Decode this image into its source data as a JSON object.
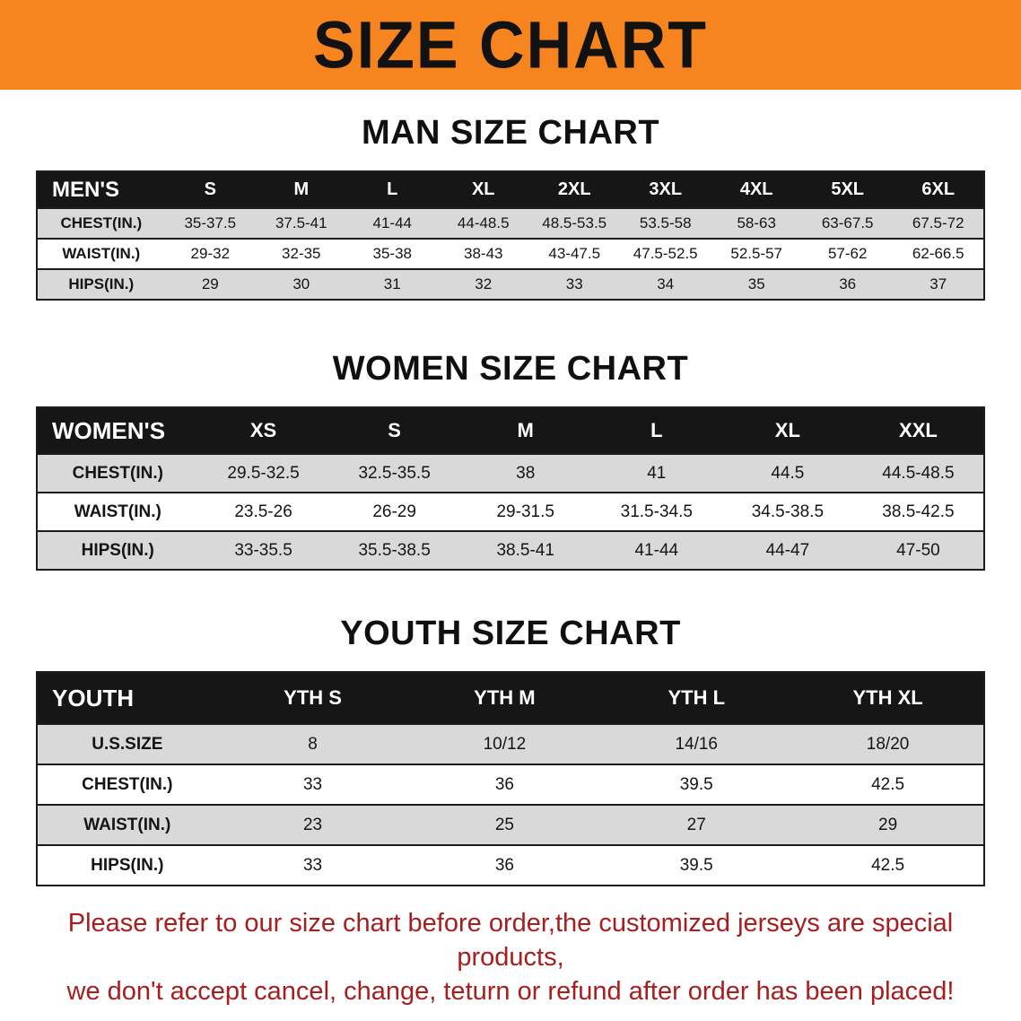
{
  "banner": {
    "title": "SIZE CHART"
  },
  "sections": [
    {
      "id": "men",
      "heading": "MAN SIZE CHART",
      "table": {
        "header": [
          "MEN'S",
          "S",
          "M",
          "L",
          "XL",
          "2XL",
          "3XL",
          "4XL",
          "5XL",
          "6XL"
        ],
        "rows": [
          {
            "label": "CHEST(IN.)",
            "values": [
              "35-37.5",
              "37.5-41",
              "41-44",
              "44-48.5",
              "48.5-53.5",
              "53.5-58",
              "58-63",
              "63-67.5",
              "67.5-72"
            ]
          },
          {
            "label": "WAIST(IN.)",
            "values": [
              "29-32",
              "32-35",
              "35-38",
              "38-43",
              "43-47.5",
              "47.5-52.5",
              "52.5-57",
              "57-62",
              "62-66.5"
            ]
          },
          {
            "label": "HIPS(IN.)",
            "values": [
              "29",
              "30",
              "31",
              "32",
              "33",
              "34",
              "35",
              "36",
              "37"
            ]
          }
        ]
      }
    },
    {
      "id": "women",
      "heading": "WOMEN SIZE CHART",
      "table": {
        "header": [
          "WOMEN'S",
          "XS",
          "S",
          "M",
          "L",
          "XL",
          "XXL"
        ],
        "rows": [
          {
            "label": "CHEST(IN.)",
            "values": [
              "29.5-32.5",
              "32.5-35.5",
              "38",
              "41",
              "44.5",
              "44.5-48.5"
            ]
          },
          {
            "label": "WAIST(IN.)",
            "values": [
              "23.5-26",
              "26-29",
              "29-31.5",
              "31.5-34.5",
              "34.5-38.5",
              "38.5-42.5"
            ]
          },
          {
            "label": "HIPS(IN.)",
            "values": [
              "33-35.5",
              "35.5-38.5",
              "38.5-41",
              "41-44",
              "44-47",
              "47-50"
            ]
          }
        ]
      }
    },
    {
      "id": "youth",
      "heading": "YOUTH SIZE CHART",
      "table": {
        "header": [
          "YOUTH",
          "YTH S",
          "YTH M",
          "YTH L",
          "YTH XL"
        ],
        "rows": [
          {
            "label": "U.S.SIZE",
            "values": [
              "8",
              "10/12",
              "14/16",
              "18/20"
            ]
          },
          {
            "label": "CHEST(IN.)",
            "values": [
              "33",
              "36",
              "39.5",
              "42.5"
            ]
          },
          {
            "label": "WAIST(IN.)",
            "values": [
              "23",
              "25",
              "27",
              "29"
            ]
          },
          {
            "label": "HIPS(IN.)",
            "values": [
              "33",
              "36",
              "39.5",
              "42.5"
            ]
          }
        ]
      }
    }
  ],
  "footer": {
    "line1": "Please refer to our size chart before order,the customized jerseys are special products,",
    "line2": "we don't accept cancel, change, teturn or refund after order has been placed!"
  },
  "colors": {
    "banner_bg": "#f6841f",
    "table_header_bg": "#161616",
    "row_alt_bg": "#d9d9d9",
    "disclaimer_text": "#a81d1d"
  }
}
